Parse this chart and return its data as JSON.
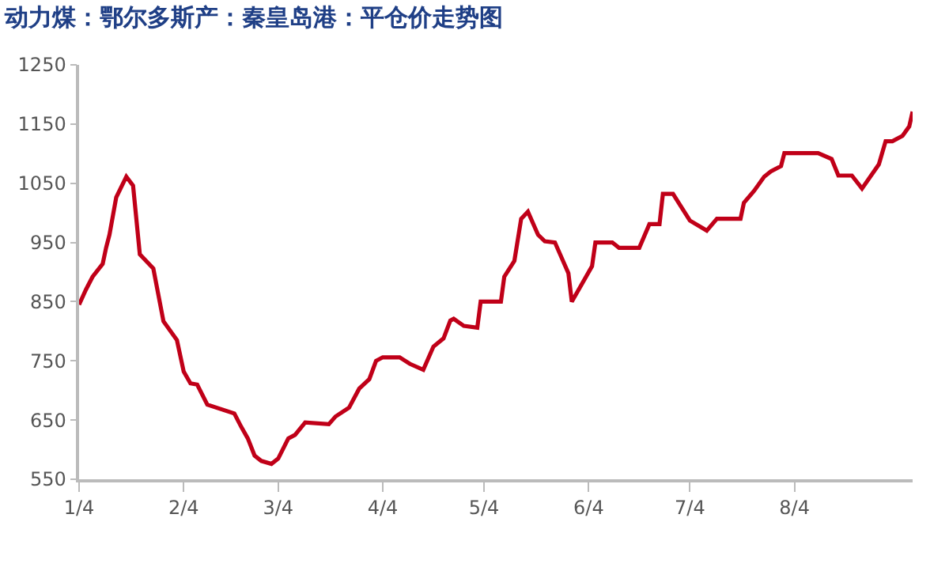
{
  "chart_data": {
    "type": "line",
    "title": "动力煤：鄂尔多斯产：秦皇岛港：平仓价走势图",
    "x": [
      "--01-04",
      "--01-06",
      "--01-08",
      "--01-11",
      "--01-12",
      "--01-13",
      "--01-15",
      "--01-18",
      "--01-20",
      "--01-22",
      "--01-26",
      "--01-29",
      "--02-02",
      "--02-04",
      "--02-06",
      "--02-08",
      "--02-11",
      "--02-19",
      "--02-21",
      "--02-23",
      "--02-25",
      "--02-27",
      "--03-02",
      "--03-04",
      "--03-07",
      "--03-09",
      "--03-12",
      "--03-19",
      "--03-21",
      "--03-25",
      "--03-28",
      "--03-31",
      "--04-02",
      "--04-04",
      "--04-09",
      "--04-12",
      "--04-16",
      "--04-19",
      "--04-22",
      "--04-24",
      "--04-25",
      "--04-28",
      "--05-02",
      "--05-03",
      "--05-09",
      "--05-10",
      "--05-13",
      "--05-15",
      "--05-17",
      "--05-20",
      "--05-22",
      "--05-25",
      "--05-29",
      "--05-30",
      "--06-05",
      "--06-06",
      "--06-11",
      "--06-13",
      "--06-19",
      "--06-22",
      "--06-25",
      "--06-26",
      "--06-29",
      "--07-04",
      "--07-09",
      "--07-12",
      "--07-19",
      "--07-20",
      "--07-23",
      "--07-26",
      "--07-28",
      "--07-31",
      "--08-01",
      "--08-11",
      "--08-15",
      "--08-17",
      "--08-21",
      "--08-24",
      "--08-29",
      "--08-31",
      "--09-02",
      "--09-05",
      "--09-07",
      "--09-08"
    ],
    "series": [
      {
        "color": "#c00018",
        "values": [
          845,
          870,
          892,
          914,
          941,
          963,
          1026,
          1061,
          1046,
          930,
          906,
          817,
          785,
          732,
          712,
          710,
          676,
          661,
          639,
          619,
          590,
          581,
          576,
          585,
          619,
          625,
          646,
          643,
          656,
          671,
          703,
          719,
          750,
          756,
          756,
          745,
          735,
          774,
          788,
          818,
          821,
          809,
          806,
          850,
          850,
          892,
          919,
          990,
          1002,
          963,
          952,
          950,
          898,
          850,
          910,
          950,
          950,
          941,
          941,
          981,
          981,
          1032,
          1032,
          987,
          970,
          990,
          990,
          1017,
          1037,
          1061,
          1070,
          1079,
          1101,
          1101,
          1091,
          1063,
          1063,
          1041,
          1082,
          1121,
          1121,
          1130,
          1146,
          1171
        ]
      }
    ],
    "xlim": [
      "--01-04",
      "--09-08"
    ],
    "xticks": [
      {
        "value": "--01-04",
        "label": "1/4"
      },
      {
        "value": "--02-04",
        "label": "2/4"
      },
      {
        "value": "--03-04",
        "label": "3/4"
      },
      {
        "value": "--04-04",
        "label": "4/4"
      },
      {
        "value": "--05-04",
        "label": "5/4"
      },
      {
        "value": "--06-04",
        "label": "6/4"
      },
      {
        "value": "--07-04",
        "label": "7/4"
      },
      {
        "value": "--08-04",
        "label": "8/4"
      }
    ],
    "ylim": [
      550,
      1250
    ],
    "yticks": [
      550,
      650,
      750,
      850,
      950,
      1050,
      1150,
      1250
    ],
    "grid": false,
    "marker": "none",
    "line_style": "solid"
  }
}
